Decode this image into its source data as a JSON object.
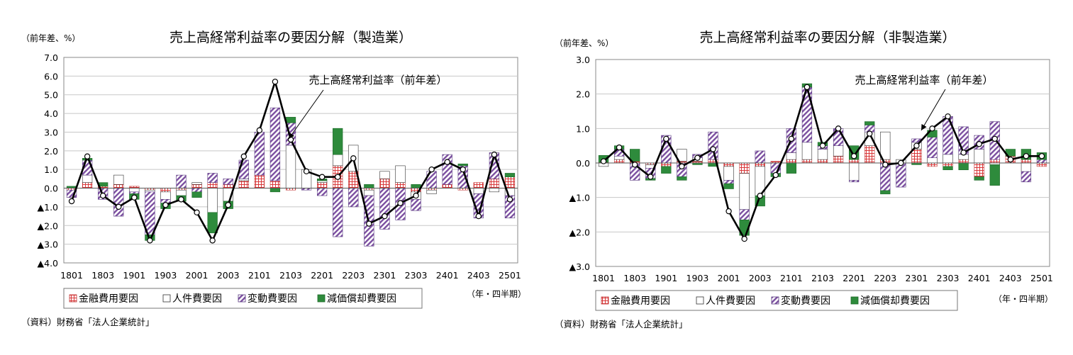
{
  "chart_data": [
    {
      "type": "bar",
      "title": "売上高経常利益率の要因分解（製造業）",
      "ylabel": "（前年差、%）",
      "xlabel": "（年・四半期）",
      "source": "（資料）財務省「法人企業統計」",
      "annotation": "売上高経常利益率（前年差）",
      "annotation_target": "2104",
      "ylim": [
        -4,
        7
      ],
      "yticks": [
        7,
        6,
        5,
        4,
        3,
        2,
        1,
        0,
        -1,
        -2,
        -3,
        -4
      ],
      "ytick_labels": [
        "7.0",
        "6.0",
        "5.0",
        "4.0",
        "3.0",
        "2.0",
        "1.0",
        "0.0",
        "▲1.0",
        "▲2.0",
        "▲3.0",
        "▲4.0"
      ],
      "categories": [
        "1801",
        "1802",
        "1803",
        "1804",
        "1901",
        "1902",
        "1903",
        "1904",
        "2001",
        "2002",
        "2003",
        "2004",
        "2101",
        "2102",
        "2103",
        "2104",
        "2201",
        "2202",
        "2203",
        "2204",
        "2301",
        "2302",
        "2303",
        "2304",
        "2401",
        "2402",
        "2403",
        "2404",
        "2501"
      ],
      "xtick_labels": [
        "1801",
        "1803",
        "1901",
        "1903",
        "2001",
        "2003",
        "2101",
        "2103",
        "2201",
        "2203",
        "2301",
        "2303",
        "2401",
        "2403",
        "2501"
      ],
      "grid": true,
      "legend": "bottom",
      "series": [
        {
          "name": "金融費用要因",
          "pattern": "grid-red",
          "values": [
            -0.1,
            0.3,
            0.1,
            0.2,
            0.1,
            -0.1,
            -0.2,
            -0.1,
            0.2,
            0.3,
            0.2,
            0.4,
            0.7,
            0.4,
            -0.1,
            0.0,
            0.3,
            1.2,
            0.9,
            -0.1,
            0.5,
            0.3,
            -0.2,
            -0.1,
            0.2,
            -0.1,
            0.3,
            0.5,
            0.6
          ]
        },
        {
          "name": "人件費要因",
          "pattern": "white",
          "values": [
            0.0,
            0.4,
            0.0,
            0.5,
            -0.2,
            -0.1,
            -0.4,
            -0.3,
            0.1,
            -1.3,
            -0.7,
            0.1,
            0.0,
            0.0,
            2.3,
            1.0,
            0.1,
            0.6,
            1.4,
            -0.3,
            0.4,
            0.9,
            -0.4,
            -0.2,
            0.0,
            0.0,
            -0.3,
            -0.2,
            -0.4
          ]
        },
        {
          "name": "変動費要因",
          "pattern": "hatch-purple",
          "values": [
            -0.4,
            0.8,
            -0.6,
            -1.5,
            -0.1,
            -2.3,
            -0.2,
            0.7,
            -0.2,
            0.5,
            0.3,
            1.0,
            2.3,
            3.9,
            1.2,
            -0.1,
            -0.4,
            -2.6,
            -1.0,
            -2.7,
            -2.2,
            -1.7,
            -0.6,
            0.9,
            1.6,
            1.2,
            -1.3,
            1.4,
            -1.2
          ]
        },
        {
          "name": "減価償却費要因",
          "pattern": "solid-green",
          "values": [
            0.1,
            0.1,
            0.2,
            0.0,
            -0.3,
            -0.3,
            -0.3,
            -0.3,
            -0.3,
            -1.1,
            -0.4,
            0.0,
            0.0,
            -0.2,
            0.3,
            0.0,
            0.1,
            1.4,
            0.0,
            0.2,
            0.0,
            0.0,
            0.2,
            0.0,
            0.0,
            0.1,
            0.0,
            0.0,
            0.2
          ]
        },
        {
          "name": "売上高経常利益率（前年差）",
          "type": "line",
          "values": [
            -0.7,
            1.7,
            -0.4,
            -1.0,
            -0.5,
            -2.8,
            -0.9,
            -0.6,
            -1.3,
            -2.8,
            -0.9,
            1.7,
            3.1,
            5.7,
            2.6,
            0.9,
            0.6,
            0.6,
            1.6,
            -1.9,
            -1.5,
            -0.8,
            -0.4,
            1.0,
            1.4,
            1.0,
            -1.5,
            1.8,
            -0.6
          ]
        }
      ]
    },
    {
      "type": "bar",
      "title": "売上高経常利益率の要因分解（非製造業）",
      "ylabel": "（前年差、%）",
      "xlabel": "（年・四半期）",
      "source": "（資料）財務省「法人企業統計」",
      "annotation": "売上高経常利益率（前年差）",
      "annotation_target": "2302",
      "ylim": [
        -3,
        3
      ],
      "yticks": [
        3,
        2,
        1,
        0,
        -1,
        -2,
        -3
      ],
      "ytick_labels": [
        "3.0",
        "2.0",
        "1.0",
        "0.0",
        "▲1.0",
        "▲2.0",
        "▲3.0"
      ],
      "categories": [
        "1801",
        "1802",
        "1803",
        "1804",
        "1901",
        "1902",
        "1903",
        "1904",
        "2001",
        "2002",
        "2003",
        "2004",
        "2101",
        "2102",
        "2103",
        "2104",
        "2201",
        "2202",
        "2203",
        "2204",
        "2301",
        "2302",
        "2303",
        "2304",
        "2401",
        "2402",
        "2403",
        "2404",
        "2501"
      ],
      "xtick_labels": [
        "1801",
        "1803",
        "1901",
        "1903",
        "2001",
        "2003",
        "2101",
        "2103",
        "2201",
        "2203",
        "2301",
        "2303",
        "2401",
        "2403",
        "2501"
      ],
      "grid": true,
      "legend": "bottom",
      "series": [
        {
          "name": "金融費用要因",
          "pattern": "grid-red",
          "values": [
            0.02,
            0.1,
            0.05,
            -0.05,
            -0.1,
            0.05,
            0.05,
            0.1,
            -0.1,
            -0.3,
            -0.1,
            0.05,
            0.1,
            0.1,
            0.1,
            0.2,
            0.1,
            0.5,
            0.1,
            0.0,
            0.4,
            -0.1,
            -0.1,
            0.1,
            -0.4,
            0.1,
            0.2,
            0.1,
            -0.1
          ]
        },
        {
          "name": "人件費要因",
          "pattern": "white",
          "values": [
            -0.1,
            0.1,
            0.0,
            -0.1,
            0.0,
            0.35,
            0.1,
            0.0,
            -0.4,
            -1.05,
            -0.85,
            0.0,
            0.2,
            0.5,
            0.3,
            0.3,
            -0.5,
            0.4,
            0.8,
            0.1,
            0.2,
            0.15,
            0.25,
            0.15,
            0.4,
            -0.05,
            0.0,
            -0.25,
            0.0
          ]
        },
        {
          "name": "変動費要因",
          "pattern": "hatch-purple",
          "values": [
            0.0,
            0.2,
            -0.5,
            -0.3,
            0.8,
            -0.4,
            0.1,
            0.8,
            -0.1,
            -0.3,
            0.35,
            -0.3,
            0.7,
            1.6,
            0.1,
            0.5,
            -0.05,
            0.2,
            -0.8,
            -0.7,
            0.1,
            0.6,
            1.1,
            0.8,
            0.4,
            1.1,
            0.0,
            -0.3,
            0.1
          ]
        },
        {
          "name": "減価償却費要因",
          "pattern": "solid-green",
          "values": [
            0.2,
            0.1,
            0.35,
            -0.05,
            -0.2,
            -0.1,
            -0.05,
            -0.1,
            -0.15,
            -0.45,
            -0.3,
            -0.1,
            -0.3,
            0.1,
            0.1,
            0.0,
            0.4,
            0.1,
            -0.1,
            0.0,
            -0.05,
            0.2,
            -0.1,
            -0.2,
            -0.1,
            -0.6,
            0.2,
            0.3,
            0.2
          ]
        },
        {
          "name": "売上高経常利益率（前年差）",
          "type": "line",
          "values": [
            0.05,
            0.45,
            -0.05,
            -0.4,
            0.7,
            -0.1,
            0.15,
            0.4,
            -1.4,
            -2.2,
            -0.95,
            -0.35,
            0.7,
            2.2,
            0.5,
            1.0,
            0.2,
            0.85,
            -0.05,
            0.0,
            0.5,
            1.0,
            1.35,
            0.3,
            0.55,
            0.7,
            0.1,
            0.2,
            0.2
          ]
        }
      ]
    }
  ]
}
